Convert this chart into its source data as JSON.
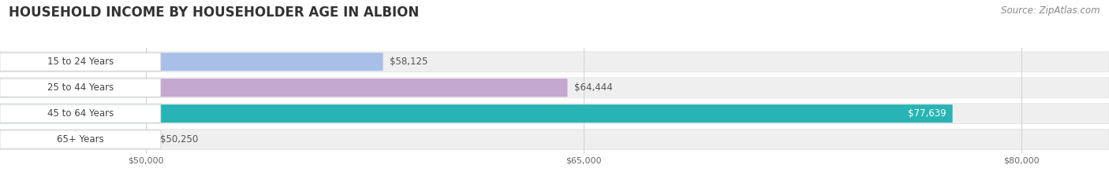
{
  "title": "HOUSEHOLD INCOME BY HOUSEHOLDER AGE IN ALBION",
  "source": "Source: ZipAtlas.com",
  "categories": [
    "15 to 24 Years",
    "25 to 44 Years",
    "45 to 64 Years",
    "65+ Years"
  ],
  "values": [
    58125,
    64444,
    77639,
    50250
  ],
  "labels": [
    "$58,125",
    "$64,444",
    "$77,639",
    "$50,250"
  ],
  "bar_colors": [
    "#a8c0e8",
    "#c4a8d0",
    "#28b4b4",
    "#b8c0e8"
  ],
  "xmin": 45000,
  "xmax": 83000,
  "xticks": [
    50000,
    65000,
    80000
  ],
  "xtick_labels": [
    "$50,000",
    "$65,000",
    "$80,000"
  ],
  "title_fontsize": 12,
  "source_fontsize": 8.5,
  "label_fontsize": 8.5,
  "cat_fontsize": 8.5,
  "tick_fontsize": 8,
  "bg_color": "#ffffff",
  "bar_row_bg": "#efefef",
  "grid_color": "#d5d5d5",
  "label_colors": [
    "#555555",
    "#555555",
    "#ffffff",
    "#555555"
  ],
  "label_ha": [
    "left",
    "left",
    "right",
    "left"
  ]
}
